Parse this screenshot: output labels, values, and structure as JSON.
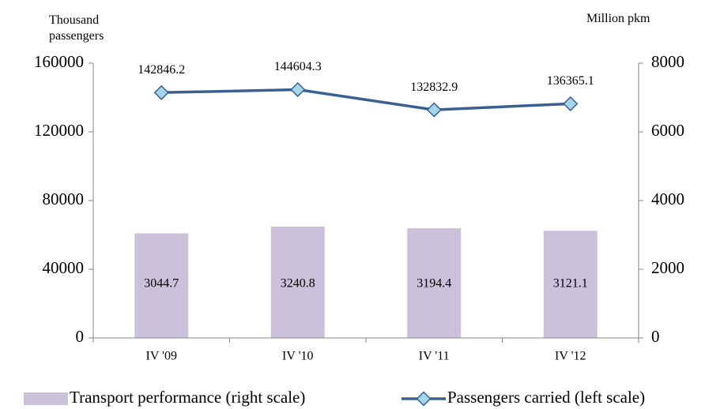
{
  "chart_data": {
    "type": "bar_line",
    "y_label": "Thousand passengers",
    "y2_label": "Million pkm",
    "categories": [
      "IV '09",
      "IV '10",
      "IV '11",
      "IV '12"
    ],
    "series": [
      {
        "name": "Transport performance (right scale)",
        "type": "bar",
        "color": "#ccc1da",
        "axis": "y2",
        "values": [
          3044.7,
          3240.8,
          3194.4,
          3121.1
        ]
      },
      {
        "name": "Passengers carried (left scale)",
        "type": "line",
        "color": "#3a6090",
        "marker_color": "#a3d6e8",
        "axis": "y",
        "values": [
          142846.2,
          144604.3,
          132832.9,
          136365.1
        ]
      }
    ],
    "ylim": [
      0,
      160000
    ],
    "yticks": [
      0,
      40000,
      80000,
      120000,
      160000
    ],
    "y2lim": [
      0,
      8000
    ],
    "y2ticks": [
      0,
      2000,
      4000,
      6000,
      8000
    ],
    "legend": "bottom"
  }
}
